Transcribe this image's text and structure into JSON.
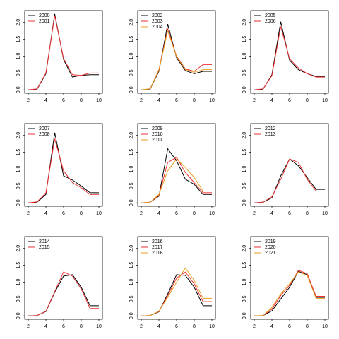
{
  "chart_data": [
    {
      "type": "line",
      "x": [
        2,
        3,
        4,
        5,
        6,
        7,
        8,
        9,
        10
      ],
      "xlim": [
        1.6,
        10.4
      ],
      "xticks": [
        2,
        4,
        6,
        8,
        10
      ],
      "ylim": [
        -0.1,
        2.35
      ],
      "yticks": [
        {
          "value": 0,
          "label": "0.0"
        },
        0.5,
        {
          "value": 1,
          "label": "1.0"
        },
        1.5,
        {
          "value": 2,
          "label": "2.0"
        }
      ],
      "legend": "top-left",
      "series": [
        {
          "name": "2000",
          "color": "#000000",
          "values": [
            0,
            0.02,
            0.48,
            2.25,
            0.9,
            0.38,
            0.43,
            0.45,
            0.45
          ]
        },
        {
          "name": "2001",
          "color": "#ee3030",
          "values": [
            0,
            0.03,
            0.5,
            2.2,
            0.93,
            0.45,
            0.43,
            0.5,
            0.5
          ]
        }
      ]
    },
    {
      "type": "line",
      "x": [
        2,
        3,
        4,
        5,
        6,
        7,
        8,
        9,
        10
      ],
      "xlim": [
        1.6,
        10.4
      ],
      "xticks": [
        2,
        4,
        6,
        8,
        10
      ],
      "ylim": [
        -0.1,
        2.35
      ],
      "yticks": [
        {
          "value": 0,
          "label": "0.0"
        },
        0.5,
        {
          "value": 1,
          "label": "1.0"
        },
        1.5,
        {
          "value": 2,
          "label": "2.0"
        }
      ],
      "legend": "top-left",
      "series": [
        {
          "name": "2002",
          "color": "#000000",
          "values": [
            0,
            0.02,
            0.55,
            1.95,
            0.95,
            0.57,
            0.48,
            0.55,
            0.55
          ]
        },
        {
          "name": "2003",
          "color": "#ee3030",
          "values": [
            0,
            0.03,
            0.6,
            1.8,
            1.0,
            0.62,
            0.55,
            0.75,
            0.75
          ]
        },
        {
          "name": "2004",
          "color": "#e8a020",
          "values": [
            0,
            0.03,
            0.58,
            1.75,
            0.98,
            0.6,
            0.52,
            0.6,
            0.6
          ]
        }
      ]
    },
    {
      "type": "line",
      "x": [
        2,
        3,
        4,
        5,
        6,
        7,
        8,
        9,
        10
      ],
      "xlim": [
        1.6,
        10.4
      ],
      "xticks": [
        2,
        4,
        6,
        8,
        10
      ],
      "ylim": [
        -0.1,
        2.35
      ],
      "yticks": [
        {
          "value": 0,
          "label": "0.0"
        },
        0.5,
        {
          "value": 1,
          "label": "1.0"
        },
        1.5,
        {
          "value": 2,
          "label": "2.0"
        }
      ],
      "legend": "top-left",
      "series": [
        {
          "name": "2005",
          "color": "#000000",
          "values": [
            0,
            0.02,
            0.45,
            2.02,
            0.88,
            0.6,
            0.48,
            0.4,
            0.4
          ]
        },
        {
          "name": "2006",
          "color": "#ee3030",
          "values": [
            0,
            0.03,
            0.42,
            1.88,
            0.92,
            0.65,
            0.48,
            0.38,
            0.38
          ]
        }
      ]
    },
    {
      "type": "line",
      "x": [
        2,
        3,
        4,
        5,
        6,
        7,
        8,
        9,
        10
      ],
      "xlim": [
        1.6,
        10.4
      ],
      "xticks": [
        2,
        4,
        6,
        8,
        10
      ],
      "ylim": [
        -0.1,
        2.35
      ],
      "yticks": [
        {
          "value": 0,
          "label": "0.0"
        },
        0.5,
        {
          "value": 1,
          "label": "1.0"
        },
        1.5,
        {
          "value": 2,
          "label": "2.0"
        }
      ],
      "legend": "top-left",
      "series": [
        {
          "name": "2007",
          "color": "#000000",
          "values": [
            0,
            0.02,
            0.25,
            2.08,
            0.8,
            0.68,
            0.5,
            0.3,
            0.3
          ]
        },
        {
          "name": "2008",
          "color": "#ee3030",
          "values": [
            0,
            0.03,
            0.3,
            1.9,
            0.95,
            0.6,
            0.45,
            0.25,
            0.25
          ]
        }
      ]
    },
    {
      "type": "line",
      "x": [
        2,
        3,
        4,
        5,
        6,
        7,
        8,
        9,
        10
      ],
      "xlim": [
        1.6,
        10.4
      ],
      "xticks": [
        2,
        4,
        6,
        8,
        10
      ],
      "ylim": [
        -0.1,
        2.35
      ],
      "yticks": [
        {
          "value": 0,
          "label": "0.0"
        },
        0.5,
        {
          "value": 1,
          "label": "1.0"
        },
        1.5,
        {
          "value": 2,
          "label": "2.0"
        }
      ],
      "legend": "top-left",
      "series": [
        {
          "name": "2009",
          "color": "#000000",
          "values": [
            0,
            0.02,
            0.2,
            1.6,
            1.25,
            0.7,
            0.55,
            0.25,
            0.25
          ]
        },
        {
          "name": "2010",
          "color": "#ee3030",
          "values": [
            0,
            0.02,
            0.22,
            1.2,
            1.35,
            0.9,
            0.6,
            0.3,
            0.3
          ]
        },
        {
          "name": "2011",
          "color": "#e8a020",
          "values": [
            0,
            0.02,
            0.25,
            0.95,
            1.3,
            1.05,
            0.75,
            0.35,
            0.35
          ]
        }
      ]
    },
    {
      "type": "line",
      "x": [
        2,
        3,
        4,
        5,
        6,
        7,
        8,
        9,
        10
      ],
      "xlim": [
        1.6,
        10.4
      ],
      "xticks": [
        2,
        4,
        6,
        8,
        10
      ],
      "ylim": [
        -0.1,
        2.35
      ],
      "yticks": [
        {
          "value": 0,
          "label": "0.0"
        },
        0.5,
        {
          "value": 1,
          "label": "1.0"
        },
        1.5,
        {
          "value": 2,
          "label": "2.0"
        }
      ],
      "legend": "top-left",
      "series": [
        {
          "name": "2012",
          "color": "#000000",
          "values": [
            0,
            0.02,
            0.15,
            0.8,
            1.3,
            1.1,
            0.75,
            0.4,
            0.4
          ]
        },
        {
          "name": "2013",
          "color": "#ee3030",
          "values": [
            0,
            0.02,
            0.18,
            0.7,
            1.3,
            1.2,
            0.7,
            0.35,
            0.35
          ]
        }
      ]
    },
    {
      "type": "line",
      "x": [
        2,
        3,
        4,
        5,
        6,
        7,
        8,
        9,
        10
      ],
      "xlim": [
        1.6,
        10.4
      ],
      "xticks": [
        2,
        4,
        6,
        8,
        10
      ],
      "ylim": [
        -0.1,
        2.35
      ],
      "yticks": [
        {
          "value": 0,
          "label": "0.0"
        },
        0.5,
        {
          "value": 1,
          "label": "1.0"
        },
        1.5,
        {
          "value": 2,
          "label": "2.0"
        }
      ],
      "legend": "top-left",
      "series": [
        {
          "name": "2014",
          "color": "#000000",
          "values": [
            0,
            0.01,
            0.13,
            0.7,
            1.18,
            1.22,
            0.85,
            0.3,
            0.3
          ]
        },
        {
          "name": "2015",
          "color": "#ee3030",
          "values": [
            0,
            0.01,
            0.14,
            0.72,
            1.3,
            1.18,
            0.8,
            0.22,
            0.22
          ]
        }
      ]
    },
    {
      "type": "line",
      "x": [
        2,
        3,
        4,
        5,
        6,
        7,
        8,
        9,
        10
      ],
      "xlim": [
        1.6,
        10.4
      ],
      "xticks": [
        2,
        4,
        6,
        8,
        10
      ],
      "ylim": [
        -0.1,
        2.35
      ],
      "yticks": [
        {
          "value": 0,
          "label": "0.0"
        },
        0.5,
        {
          "value": 1,
          "label": "1.0"
        },
        1.5,
        {
          "value": 2,
          "label": "2.0"
        }
      ],
      "legend": "top-left",
      "series": [
        {
          "name": "2016",
          "color": "#000000",
          "values": [
            0,
            0.01,
            0.12,
            0.65,
            1.22,
            1.2,
            0.85,
            0.3,
            0.3
          ]
        },
        {
          "name": "2017",
          "color": "#ee3030",
          "values": [
            0,
            0.01,
            0.13,
            0.6,
            1.12,
            1.3,
            0.95,
            0.42,
            0.42
          ]
        },
        {
          "name": "2018",
          "color": "#e8a020",
          "values": [
            0,
            0.01,
            0.14,
            0.55,
            1.0,
            1.42,
            1.05,
            0.52,
            0.52
          ]
        }
      ]
    },
    {
      "type": "line",
      "x": [
        2,
        3,
        4,
        5,
        6,
        7,
        8,
        9,
        10
      ],
      "xlim": [
        1.6,
        10.4
      ],
      "xticks": [
        2,
        4,
        6,
        8,
        10
      ],
      "ylim": [
        -0.1,
        2.35
      ],
      "yticks": [
        {
          "value": 0,
          "label": "0.0"
        },
        0.5,
        {
          "value": 1,
          "label": "1.0"
        },
        1.5,
        {
          "value": 2,
          "label": "2.0"
        }
      ],
      "legend": "top-left",
      "series": [
        {
          "name": "2019",
          "color": "#000000",
          "values": [
            0,
            0.01,
            0.15,
            0.5,
            0.85,
            1.32,
            1.22,
            0.55,
            0.55
          ]
        },
        {
          "name": "2020",
          "color": "#ee3030",
          "values": [
            0,
            0.01,
            0.2,
            0.6,
            0.9,
            1.35,
            1.25,
            0.58,
            0.58
          ]
        },
        {
          "name": "2021",
          "color": "#e8a020",
          "values": [
            0,
            0.01,
            0.25,
            0.65,
            0.95,
            1.3,
            1.2,
            0.52,
            0.52
          ]
        }
      ]
    }
  ]
}
